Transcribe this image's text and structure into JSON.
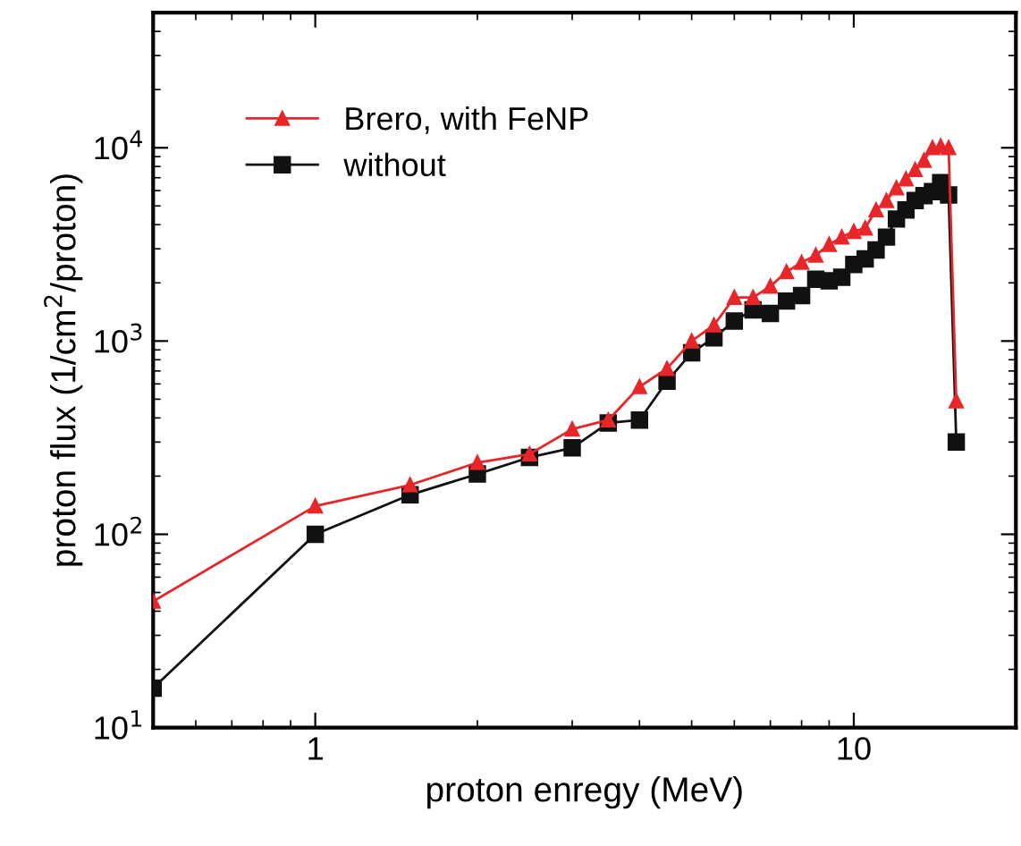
{
  "chart_data": {
    "type": "line",
    "xlabel": "proton enregy (MeV)",
    "ylabel": "proton flux (1/cm$^{2}$/proton)",
    "x": [
      0.5,
      1,
      1.5,
      2,
      2.5,
      3,
      3.5,
      4,
      4.5,
      5,
      5.5,
      6,
      6.5,
      7,
      7.5,
      8,
      8.5,
      9,
      9.5,
      10,
      10.5,
      11,
      11.5,
      12,
      12.5,
      13,
      13.5,
      14,
      14.5,
      15,
      15.5
    ],
    "series": [
      {
        "name": "Brero, with FeNP",
        "color": "#e8262a",
        "marker": "triangle",
        "values": [
          45,
          140,
          180,
          235,
          260,
          350,
          390,
          580,
          720,
          1000,
          1210,
          1680,
          1680,
          1920,
          2280,
          2550,
          2780,
          3160,
          3450,
          3690,
          3840,
          4770,
          5330,
          6200,
          6900,
          7700,
          8600,
          10000,
          10200,
          10000,
          490
        ]
      },
      {
        "name": "without",
        "color": "#111111",
        "marker": "square",
        "values": [
          16,
          100,
          160,
          205,
          250,
          280,
          377,
          390,
          620,
          870,
          1040,
          1270,
          1450,
          1390,
          1610,
          1720,
          2090,
          2050,
          2140,
          2490,
          2660,
          2960,
          3450,
          4280,
          4770,
          5330,
          5660,
          5930,
          6600,
          5700,
          300
        ]
      }
    ],
    "log": "xy",
    "xlim": [
      0.5,
      20
    ],
    "xticks": [
      1,
      10
    ],
    "ylim": [
      10,
      50000
    ],
    "yticks": [
      {
        "value": 10,
        "label": "10$^{1}$"
      },
      {
        "value": 100,
        "label": "10$^{2}$"
      },
      {
        "value": 1000,
        "label": "10$^{3}$"
      },
      {
        "value": 10000,
        "label": "10$^{4}$"
      }
    ],
    "grid": false,
    "legend": "top left",
    "line_style": "solid"
  }
}
